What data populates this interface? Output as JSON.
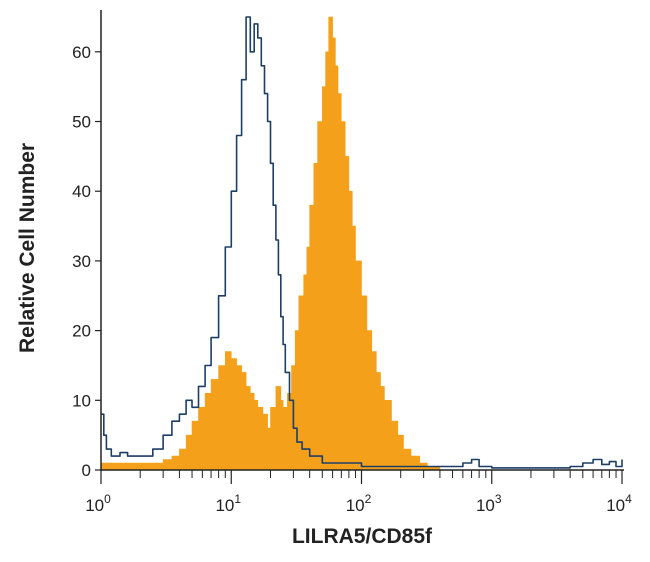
{
  "chart_data": {
    "type": "area",
    "title": "",
    "xlabel": "LILRA5/CD85f",
    "ylabel": "Relative Cell Number",
    "xscale": "log",
    "xlim": [
      1,
      10000
    ],
    "ylim": [
      0,
      66
    ],
    "grid": false,
    "x_ticks": [
      {
        "value": 1,
        "base": "10",
        "exp": "0"
      },
      {
        "value": 10,
        "base": "10",
        "exp": "1"
      },
      {
        "value": 100,
        "base": "10",
        "exp": "2"
      },
      {
        "value": 1000,
        "base": "10",
        "exp": "3"
      },
      {
        "value": 10000,
        "base": "10",
        "exp": "4"
      }
    ],
    "y_ticks": [
      {
        "value": 0,
        "label": "0"
      },
      {
        "value": 10,
        "label": "10"
      },
      {
        "value": 20,
        "label": "20"
      },
      {
        "value": 30,
        "label": "30"
      },
      {
        "value": 40,
        "label": "40"
      },
      {
        "value": 50,
        "label": "50"
      },
      {
        "value": 60,
        "label": "60"
      }
    ],
    "series": [
      {
        "style": "filled",
        "color": "#f5a01a",
        "x": [
          1.0,
          1.3,
          1.6,
          2.0,
          2.5,
          3.0,
          3.5,
          4.0,
          4.5,
          5.0,
          5.6,
          6.3,
          7.0,
          8.0,
          9.0,
          10.0,
          11.0,
          12.0,
          13.0,
          14.0,
          15.0,
          16.0,
          17.5,
          19.0,
          20.0,
          22.0,
          24.0,
          25.0,
          27.0,
          29.0,
          31.0,
          33.0,
          36.0,
          38.0,
          40.0,
          43.0,
          46.0,
          50.0,
          53.0,
          56.0,
          60.0,
          63.0,
          66.0,
          70.0,
          75.0,
          80.0,
          85.0,
          90.0,
          100.0,
          110.0,
          120.0,
          130.0,
          140.0,
          150.0,
          170.0,
          190.0,
          210.0,
          240.0,
          280.0,
          320.0,
          400.0
        ],
        "y": [
          1,
          1,
          1,
          1,
          1,
          1.5,
          2,
          3,
          5,
          7,
          9,
          11,
          13,
          15,
          17,
          16,
          15,
          14,
          12,
          11,
          10,
          9,
          8,
          6,
          9,
          12,
          10,
          9,
          11,
          15,
          20,
          25,
          28,
          32,
          38,
          44,
          50,
          55,
          60,
          65,
          62,
          58,
          54,
          50,
          45,
          40,
          35,
          30,
          25,
          20,
          17,
          14,
          12,
          10,
          7,
          5,
          3,
          2,
          1,
          0.5,
          0
        ]
      },
      {
        "style": "outline",
        "color": "#1d3f66",
        "x": [
          1.0,
          1.05,
          1.1,
          1.2,
          1.4,
          1.6,
          2.0,
          2.5,
          3.0,
          3.5,
          4.0,
          4.5,
          5.0,
          5.6,
          6.3,
          7.0,
          8.0,
          9.0,
          10.0,
          11.0,
          12.0,
          13.0,
          14.0,
          15.0,
          16.0,
          17.0,
          18.0,
          19.0,
          20.0,
          21.0,
          22.0,
          23.0,
          24.0,
          25.0,
          26.0,
          28.0,
          30.0,
          32.0,
          35.0,
          40.0,
          50.0,
          60.0,
          80.0,
          100.0,
          150.0,
          200.0,
          300.0,
          500.0,
          600.0,
          700.0,
          800.0,
          1000.0,
          2000.0,
          4000.0,
          5000.0,
          6000.0,
          7000.0,
          8000.0,
          9000.0,
          10000.0
        ],
        "y": [
          8,
          5,
          3,
          2,
          2.5,
          2,
          2,
          3,
          5,
          7,
          8,
          10,
          9,
          12,
          15,
          19,
          25,
          32,
          40,
          48,
          56,
          65,
          60,
          64,
          62,
          58,
          54,
          50,
          44,
          38,
          33,
          28,
          22,
          18,
          14,
          10,
          6,
          4,
          3,
          2,
          1,
          1,
          1,
          0.5,
          0.5,
          0.5,
          0.5,
          0.5,
          1,
          1.5,
          0.5,
          0.3,
          0.3,
          0.5,
          1,
          1.5,
          0.8,
          1.2,
          0.5,
          1.5
        ]
      }
    ]
  }
}
